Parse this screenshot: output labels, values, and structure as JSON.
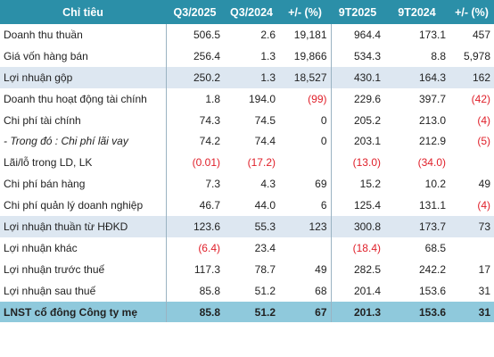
{
  "header": {
    "label": "Chỉ tiêu",
    "q3_2025": "Q3/2025",
    "q3_2024": "Q3/2024",
    "q_change": "+/- (%)",
    "ytd_2025": "9T2025",
    "ytd_2024": "9T2024",
    "ytd_change": "+/- (%)"
  },
  "rows": [
    {
      "label": "Doanh thu thuần",
      "q3_2025": "506.5",
      "q3_2024": "2.6",
      "q_change": "19,181",
      "ytd_2025": "964.4",
      "ytd_2024": "173.1",
      "ytd_change": "457",
      "style": ""
    },
    {
      "label": "Giá vốn hàng bán",
      "q3_2025": "256.4",
      "q3_2024": "1.3",
      "q_change": "19,866",
      "ytd_2025": "534.3",
      "ytd_2024": "8.8",
      "ytd_change": "5,978",
      "style": ""
    },
    {
      "label": "Lợi nhuận gộp",
      "q3_2025": "250.2",
      "q3_2024": "1.3",
      "q_change": "18,527",
      "ytd_2025": "430.1",
      "ytd_2024": "164.3",
      "ytd_change": "162",
      "style": "shade"
    },
    {
      "label": "Doanh thu hoạt động tài chính",
      "q3_2025": "1.8",
      "q3_2024": "194.0",
      "q_change": "(99)",
      "ytd_2025": "229.6",
      "ytd_2024": "397.7",
      "ytd_change": "(42)",
      "style": ""
    },
    {
      "label": "Chi phí tài chính",
      "q3_2025": "74.3",
      "q3_2024": "74.5",
      "q_change": "0",
      "ytd_2025": "205.2",
      "ytd_2024": "213.0",
      "ytd_change": "(4)",
      "style": ""
    },
    {
      "label": "- Trong đó : Chi phí lãi vay",
      "q3_2025": "74.2",
      "q3_2024": "74.4",
      "q_change": "0",
      "ytd_2025": "203.1",
      "ytd_2024": "212.9",
      "ytd_change": "(5)",
      "style": "italic"
    },
    {
      "label": "Lãi/lỗ trong LD, LK",
      "q3_2025": "(0.01)",
      "q3_2024": "(17.2)",
      "q_change": "",
      "ytd_2025": "(13.0)",
      "ytd_2024": "(34.0)",
      "ytd_change": "",
      "style": ""
    },
    {
      "label": "Chi phí bán hàng",
      "q3_2025": "7.3",
      "q3_2024": "4.3",
      "q_change": "69",
      "ytd_2025": "15.2",
      "ytd_2024": "10.2",
      "ytd_change": "49",
      "style": ""
    },
    {
      "label": "Chi phí quản lý doanh nghiệp",
      "q3_2025": "46.7",
      "q3_2024": "44.0",
      "q_change": "6",
      "ytd_2025": "125.4",
      "ytd_2024": "131.1",
      "ytd_change": "(4)",
      "style": ""
    },
    {
      "label": "Lợi nhuận thuần từ HĐKD",
      "q3_2025": "123.6",
      "q3_2024": "55.3",
      "q_change": "123",
      "ytd_2025": "300.8",
      "ytd_2024": "173.7",
      "ytd_change": "73",
      "style": "shade"
    },
    {
      "label": "Lợi nhuận khác",
      "q3_2025": "(6.4)",
      "q3_2024": "23.4",
      "q_change": "",
      "ytd_2025": "(18.4)",
      "ytd_2024": "68.5",
      "ytd_change": "",
      "style": ""
    },
    {
      "label": "Lợi nhuận trước thuế",
      "q3_2025": "117.3",
      "q3_2024": "78.7",
      "q_change": "49",
      "ytd_2025": "282.5",
      "ytd_2024": "242.2",
      "ytd_change": "17",
      "style": ""
    },
    {
      "label": "Lợi nhuận sau thuế",
      "q3_2025": "85.8",
      "q3_2024": "51.2",
      "q_change": "68",
      "ytd_2025": "201.4",
      "ytd_2024": "153.6",
      "ytd_change": "31",
      "style": ""
    },
    {
      "label": "LNST cổ đông Công ty mẹ",
      "q3_2025": "85.8",
      "q3_2024": "51.2",
      "q_change": "67",
      "ytd_2025": "201.3",
      "ytd_2024": "153.6",
      "ytd_change": "31",
      "style": "total"
    }
  ],
  "colors": {
    "header": "#2b8fa8",
    "shade": "#dde7f1",
    "total": "#8fc9dc",
    "negative": "#e0202a"
  }
}
